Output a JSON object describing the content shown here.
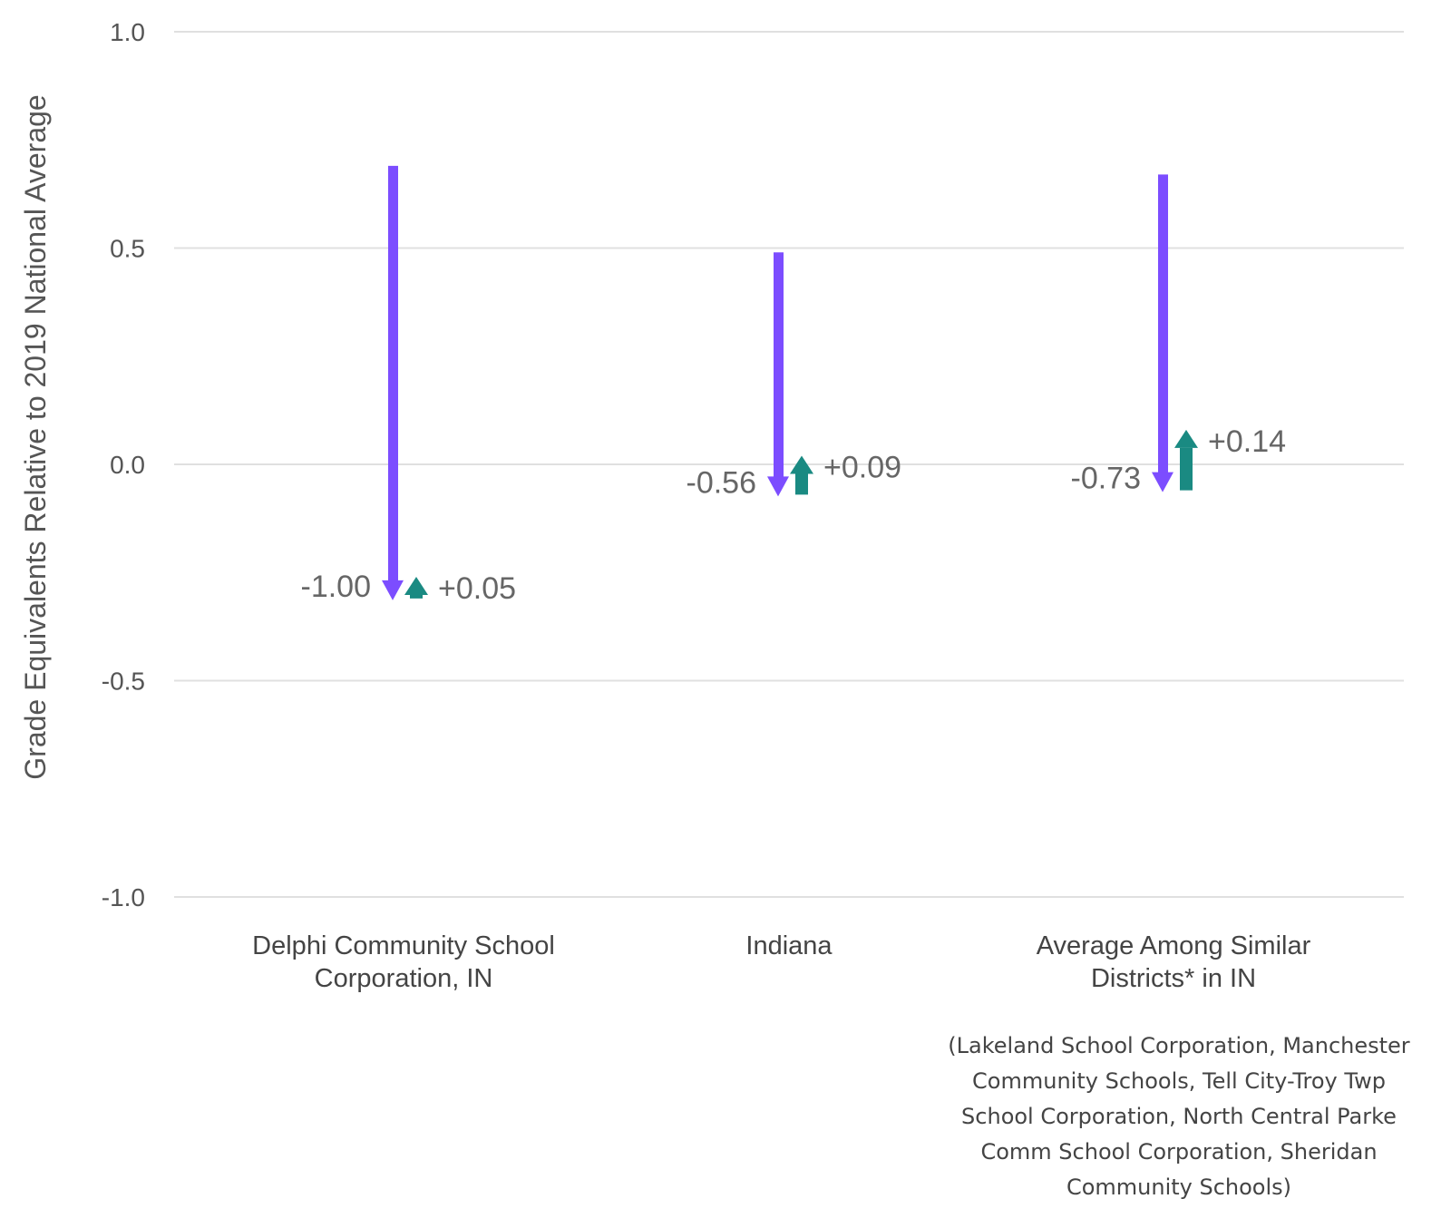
{
  "chart_data": {
    "type": "arrow",
    "ylabel": "Grade Equivalents Relative to 2019 National Average",
    "ylim": [
      -1.0,
      1.0
    ],
    "yticks": [
      1.0,
      0.5,
      0.0,
      -0.5,
      -1.0
    ],
    "ytick_labels": [
      "1.0",
      "0.5",
      "0.0",
      "-0.5",
      "-1.0"
    ],
    "grid": true,
    "colors": {
      "decline": "#7c4dff",
      "gain": "#1a8a82",
      "grid": "#e0e0e0"
    },
    "categories": [
      {
        "label": [
          "Delphi Community School",
          "Corporation, IN"
        ],
        "start": 0.69,
        "decline": -1.0,
        "gain": 0.05,
        "decline_label": "-1.00",
        "gain_label": "+0.05"
      },
      {
        "label": [
          "Indiana"
        ],
        "start": 0.49,
        "decline": -0.56,
        "gain": 0.09,
        "decline_label": "-0.56",
        "gain_label": "+0.09"
      },
      {
        "label": [
          "Average Among Similar",
          "Districts* in IN"
        ],
        "start": 0.67,
        "decline": -0.73,
        "gain": 0.14,
        "decline_label": "-0.73",
        "gain_label": "+0.14"
      }
    ]
  },
  "footnote": {
    "lines": [
      "(Lakeland School Corporation, Manchester",
      "Community Schools, Tell City-Troy Twp",
      "School Corporation, North Central Parke",
      "Comm School Corporation, Sheridan",
      "Community Schools)"
    ]
  }
}
